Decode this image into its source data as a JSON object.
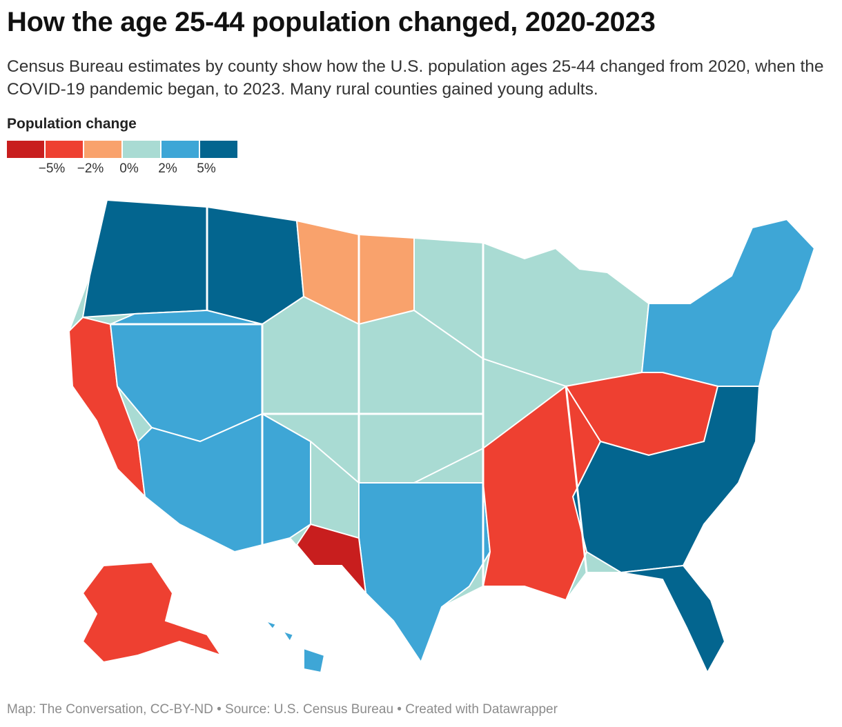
{
  "title": "How the age 25-44 population changed, 2020-2023",
  "subtitle": "Census Bureau estimates by county show how the U.S. population ages 25-44 changed from 2020, when the COVID-19 pandemic began, to 2023. Many rural counties gained young adults.",
  "legend": {
    "title": "Population change",
    "bins": [
      {
        "color": "#c81e1e",
        "label": "≤ −5%"
      },
      {
        "color": "#ee4031",
        "label": "−5% to −2%"
      },
      {
        "color": "#f9a26c",
        "label": "−2% to 0%"
      },
      {
        "color": "#a9dbd3",
        "label": "0% to 2%"
      },
      {
        "color": "#3ea6d6",
        "label": "2% to 5%"
      },
      {
        "color": "#03658f",
        "label": "≥ 5%"
      }
    ],
    "ticks": [
      "−5%",
      "−2%",
      "0%",
      "2%",
      "5%"
    ]
  },
  "map_regions": [
    {
      "name": "pacific-northwest",
      "bin": 5
    },
    {
      "name": "northern-rockies",
      "bin": 5
    },
    {
      "name": "northern-plains-west",
      "bin": 2
    },
    {
      "name": "great-lakes",
      "bin": 3
    },
    {
      "name": "northeast",
      "bin": 4
    },
    {
      "name": "california-coast",
      "bin": 1
    },
    {
      "name": "great-basin",
      "bin": 4
    },
    {
      "name": "southwest",
      "bin": 4
    },
    {
      "name": "central-plains",
      "bin": 3
    },
    {
      "name": "appalachia",
      "bin": 1
    },
    {
      "name": "southeast",
      "bin": 5
    },
    {
      "name": "texas",
      "bin": 4
    },
    {
      "name": "west-texas",
      "bin": 0
    },
    {
      "name": "lower-mississippi",
      "bin": 1
    },
    {
      "name": "florida",
      "bin": 5
    },
    {
      "name": "alaska",
      "bin": 1
    },
    {
      "name": "hawaii",
      "bin": 4
    }
  ],
  "footer": "Map: The Conversation, CC-BY-ND • Source: U.S. Census Bureau • Created with Datawrapper"
}
